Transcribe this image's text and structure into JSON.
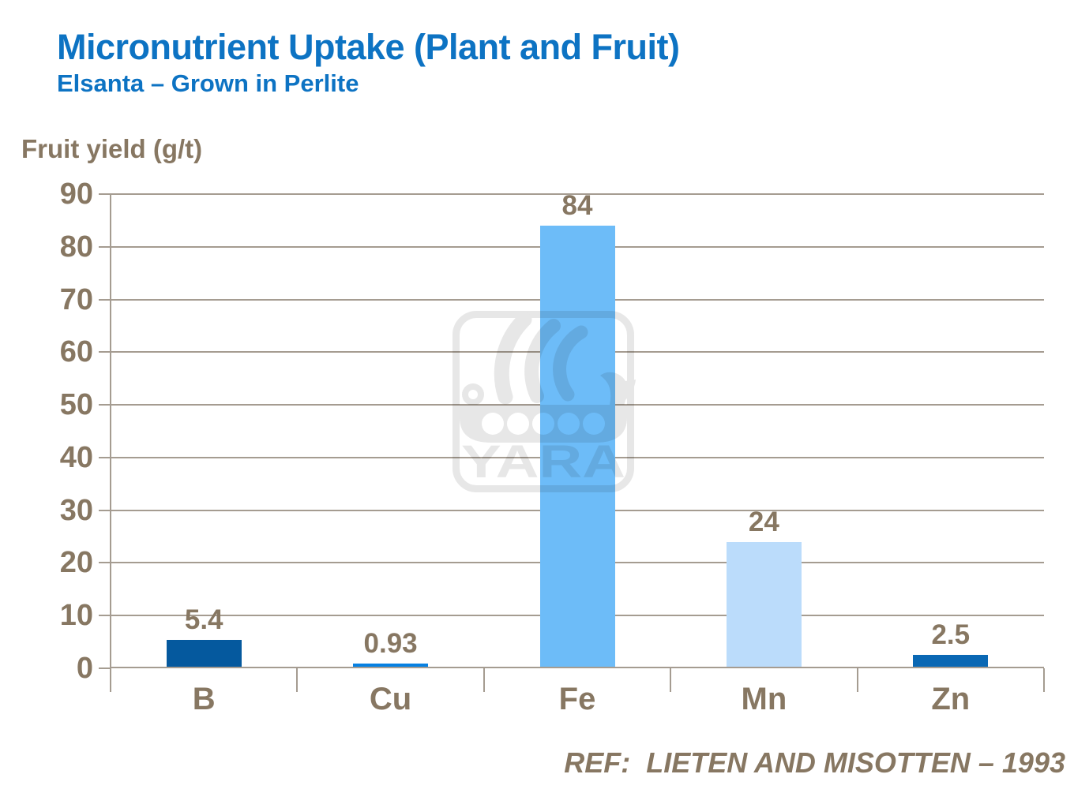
{
  "header": {
    "title": "Micronutrient Uptake (Plant and Fruit)",
    "subtitle": "Elsanta – Grown in Perlite"
  },
  "chart_data": {
    "type": "bar",
    "title": "Micronutrient Uptake (Plant and Fruit)",
    "subtitle": "Elsanta – Grown in Perlite",
    "ylabel": "Fruit yield (g/t)",
    "xlabel": "",
    "categories": [
      "B",
      "Cu",
      "Fe",
      "Mn",
      "Zn"
    ],
    "values": [
      5.4,
      0.93,
      84,
      24,
      2.5
    ],
    "value_labels": [
      "5.4",
      "0.93",
      "84",
      "24",
      "2.5"
    ],
    "bar_colors": [
      "#05599E",
      "#0781E2",
      "#6DBCF8",
      "#BBDCFB",
      "#0A68B4"
    ],
    "ylim": [
      0,
      90
    ],
    "yticks": [
      0,
      10,
      20,
      30,
      40,
      50,
      60,
      70,
      80,
      90
    ],
    "grid": true,
    "legend": false
  },
  "watermark": {
    "text": "YARA",
    "icon": "yara-viking-ship-logo",
    "color": "#E7E7E7"
  },
  "footer": {
    "ref": "REF:  LIETEN AND MISOTTEN – 1993"
  },
  "colors": {
    "title_blue": "#0D73C3",
    "text_brown": "#877762",
    "grid_gray": "#A59C91"
  }
}
